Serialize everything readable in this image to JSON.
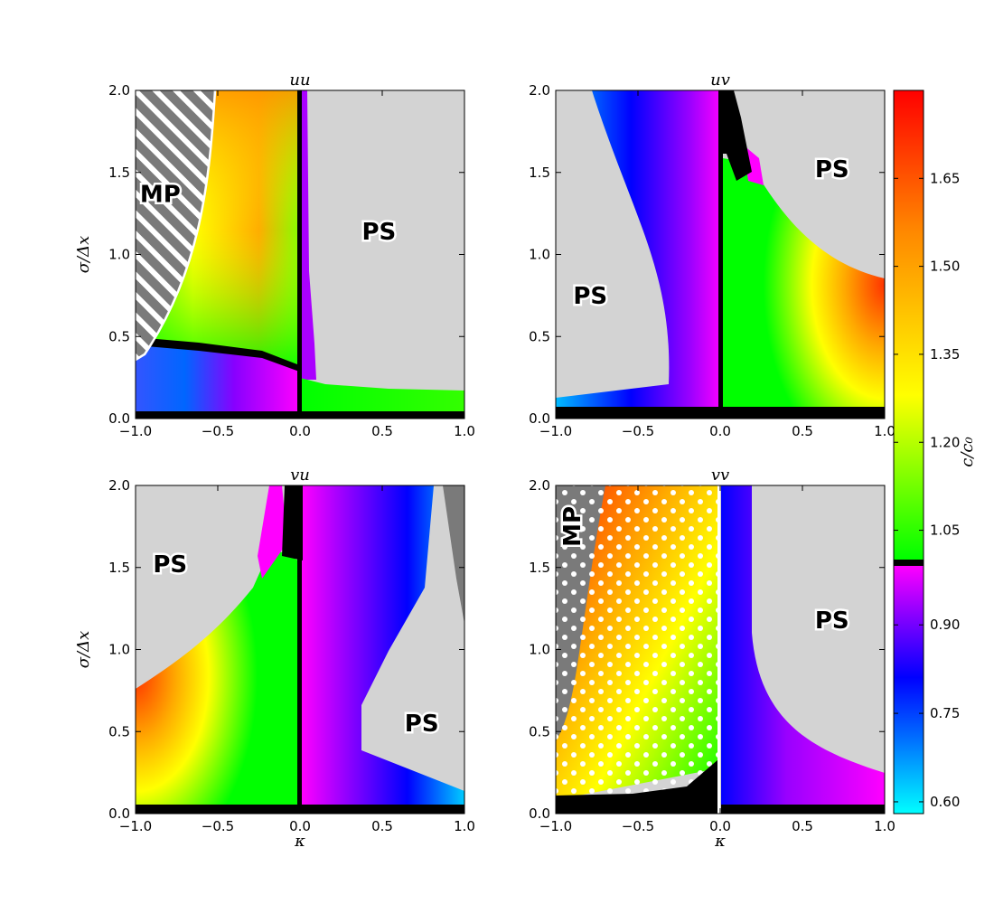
{
  "chart_data": {
    "type": "heatmap",
    "panels": [
      {
        "title": "uu",
        "ylabel": "σ/Δx",
        "xlabel": "",
        "xlim": [
          -1.0,
          1.0
        ],
        "ylim": [
          0.0,
          2.0
        ],
        "xticks": [
          "−1.0",
          "−0.5",
          "0.0",
          "0.5",
          "1.0"
        ],
        "yticks": [
          "0.0",
          "0.5",
          "1.0",
          "1.5",
          "2.0"
        ],
        "regions": [
          {
            "label": "MP",
            "x": -0.85,
            "y": 1.37
          },
          {
            "label": "PS",
            "x": 0.48,
            "y": 1.14
          }
        ],
        "peak": {
          "kappa": -0.35,
          "sigma": 1.9,
          "c_over_c0": 1.48
        }
      },
      {
        "title": "uv",
        "ylabel": "",
        "xlabel": "",
        "xlim": [
          -1.0,
          1.0
        ],
        "ylim": [
          0.0,
          2.0
        ],
        "xticks": [
          "−1.0",
          "−0.5",
          "0.0",
          "0.5",
          "1.0"
        ],
        "yticks": [
          "0.0",
          "0.5",
          "1.0",
          "1.5",
          "2.0"
        ],
        "regions": [
          {
            "label": "PS",
            "x": 0.68,
            "y": 1.52
          },
          {
            "label": "PS",
            "x": -0.79,
            "y": 0.75
          }
        ],
        "peak": {
          "kappa": 1.0,
          "sigma": 0.55,
          "c_over_c0": 1.62
        }
      },
      {
        "title": "vu",
        "ylabel": "σ/Δx",
        "xlabel": "κ",
        "xlim": [
          -1.0,
          1.0
        ],
        "ylim": [
          0.0,
          2.0
        ],
        "xticks": [
          "−1.0",
          "−0.5",
          "0.0",
          "0.5",
          "1.0"
        ],
        "yticks": [
          "0.0",
          "0.5",
          "1.0",
          "1.5",
          "2.0"
        ],
        "regions": [
          {
            "label": "PS",
            "x": -0.79,
            "y": 1.52
          },
          {
            "label": "PS",
            "x": 0.74,
            "y": 0.55
          }
        ],
        "peak": {
          "kappa": -1.0,
          "sigma": 0.6,
          "c_over_c0": 1.62
        }
      },
      {
        "title": "vv",
        "ylabel": "",
        "xlabel": "κ",
        "xlim": [
          -1.0,
          1.0
        ],
        "ylim": [
          0.0,
          2.0
        ],
        "xticks": [
          "−1.0",
          "−0.5",
          "0.0",
          "0.5",
          "1.0"
        ],
        "yticks": [
          "0.0",
          "0.5",
          "1.0",
          "1.5",
          "2.0"
        ],
        "regions": [
          {
            "label": "MP",
            "x": -0.9,
            "y": 1.75
          },
          {
            "label": "PS",
            "x": 0.68,
            "y": 1.18
          }
        ],
        "peak": {
          "kappa": -0.7,
          "sigma": 1.9,
          "c_over_c0": 1.72
        }
      }
    ],
    "colorbar": {
      "label": "c/c₀",
      "range": [
        0.58,
        1.8
      ],
      "ticks": [
        "0.60",
        "0.75",
        "0.90",
        "1.05",
        "1.20",
        "1.35",
        "1.50",
        "1.65"
      ],
      "tick_values": [
        0.6,
        0.75,
        0.9,
        1.05,
        1.2,
        1.35,
        1.5,
        1.65
      ],
      "split_value": 1.0,
      "colors_below_1": [
        "#00ffff",
        "#0060ff",
        "#0000ff",
        "#8000ff",
        "#ff00ff"
      ],
      "colors_above_1": [
        "#00ff00",
        "#ffff00",
        "#ff8000",
        "#ff0000"
      ]
    },
    "colors": {
      "stable_region": "#d3d3d3",
      "unstable_boundary": "#000000",
      "mp_region": "#808080"
    }
  }
}
